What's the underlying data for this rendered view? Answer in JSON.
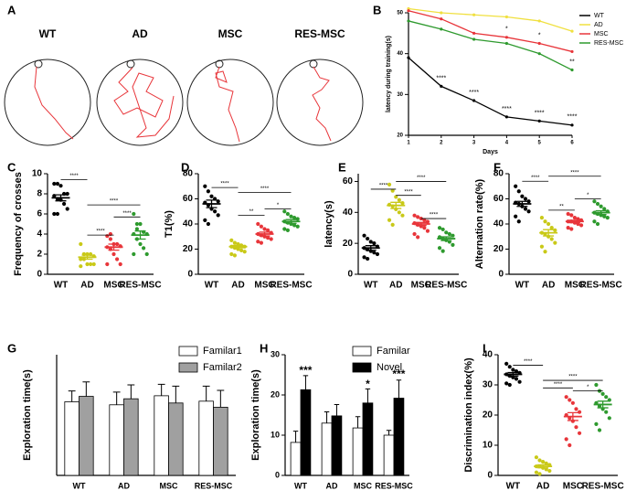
{
  "chart_data": [
    {
      "type": "trajectory",
      "label": "A",
      "categories": [
        "WT",
        "AD",
        "MSC",
        "RES-MSC"
      ]
    },
    {
      "type": "line",
      "label": "B",
      "xlabel": "Days",
      "ylabel": "latency during training(s)",
      "x": [
        1,
        2,
        3,
        4,
        5,
        6
      ],
      "xlim": [
        1,
        6
      ],
      "xticks": [
        1,
        2,
        3,
        4,
        5,
        6
      ],
      "ylim": [
        20,
        50
      ],
      "yticks": [
        20,
        30,
        40,
        50
      ],
      "series": [
        {
          "name": "WT",
          "color": "#000000",
          "values": [
            39,
            32,
            28.5,
            24.5,
            23.5,
            22.5
          ]
        },
        {
          "name": "AD",
          "color": "#f0e040",
          "values": [
            51,
            50,
            49.5,
            49,
            48,
            45.5
          ]
        },
        {
          "name": "MSC",
          "color": "#e8353a",
          "values": [
            50.5,
            48.5,
            45,
            44,
            42.5,
            40.5
          ]
        },
        {
          "name": "RES-MSC",
          "color": "#2e9a2e",
          "values": [
            48,
            46,
            43.5,
            42.5,
            40,
            36
          ]
        }
      ],
      "annotations": [
        {
          "x": 2,
          "y": 34,
          "text": "****"
        },
        {
          "x": 3,
          "y": 30.5,
          "text": "****"
        },
        {
          "x": 4,
          "y": 26.5,
          "text": "****"
        },
        {
          "x": 5,
          "y": 25.5,
          "text": "****"
        },
        {
          "x": 6,
          "y": 24.5,
          "text": "****"
        },
        {
          "x": 4,
          "y": 46,
          "text": "*"
        },
        {
          "x": 5,
          "y": 44.5,
          "text": "*"
        },
        {
          "x": 6,
          "y": 38,
          "text": "**"
        }
      ]
    },
    {
      "type": "dot",
      "label": "C",
      "ylabel": "Frequency of crosses",
      "categories": [
        "WT",
        "AD",
        "MSC",
        "RES-MSC"
      ],
      "colors": [
        "#000000",
        "#c9c918",
        "#e8353a",
        "#2e9a2e"
      ],
      "ylim": [
        0,
        10
      ],
      "yticks": [
        0,
        2,
        4,
        6,
        8,
        10
      ],
      "points": [
        [
          9,
          9,
          8.8,
          8,
          8,
          7.8,
          7.5,
          7.4,
          7,
          6.5,
          6,
          6
        ],
        [
          3,
          2,
          2,
          2,
          1.8,
          1.5,
          1.5,
          1,
          1,
          1,
          0.8,
          2
        ],
        [
          3.8,
          3.5,
          3,
          3,
          2.8,
          2.7,
          2.5,
          2,
          1.5,
          1,
          1,
          4
        ],
        [
          6,
          5,
          5,
          4.2,
          4,
          4,
          3.5,
          3,
          2.6,
          2,
          2,
          4.5
        ]
      ],
      "means": [
        7.6,
        1.7,
        2.7,
        3.9
      ],
      "errors": [
        0.3,
        0.2,
        0.3,
        0.4
      ],
      "brackets": [
        {
          "from": 0,
          "to": 1,
          "y": 9.4,
          "text": "****"
        },
        {
          "from": 1,
          "to": 3,
          "y": 6.9,
          "text": "****"
        },
        {
          "from": 2,
          "to": 3,
          "y": 5.7,
          "text": "****"
        },
        {
          "from": 1,
          "to": 2,
          "y": 3.9,
          "text": "****"
        }
      ]
    },
    {
      "type": "dot",
      "label": "D",
      "ylabel": "T1(%)",
      "categories": [
        "WT",
        "AD",
        "MSC",
        "RES-MSC"
      ],
      "colors": [
        "#000000",
        "#c9c918",
        "#e8353a",
        "#2e9a2e"
      ],
      "ylim": [
        0,
        80
      ],
      "yticks": [
        0,
        20,
        40,
        60,
        80
      ],
      "points": [
        [
          70,
          66,
          62,
          60,
          58,
          57,
          55,
          52,
          50,
          47,
          43,
          40
        ],
        [
          27,
          25,
          24,
          23,
          22,
          22,
          21,
          20,
          19,
          18,
          16,
          15
        ],
        [
          40,
          38,
          36,
          35,
          33,
          32,
          31,
          30,
          29,
          28,
          26,
          25
        ],
        [
          50,
          48,
          46,
          45,
          44,
          42,
          41,
          40,
          39,
          38,
          36,
          35
        ]
      ],
      "means": [
        56,
        22,
        32,
        42
      ],
      "errors": [
        3,
        1,
        1.5,
        1.5
      ],
      "brackets": [
        {
          "from": 0,
          "to": 1,
          "y": 69,
          "text": "****"
        },
        {
          "from": 1,
          "to": 3,
          "y": 65,
          "text": "****"
        },
        {
          "from": 2,
          "to": 3,
          "y": 52,
          "text": "*"
        },
        {
          "from": 1,
          "to": 2,
          "y": 47,
          "text": "**"
        }
      ]
    },
    {
      "type": "dot",
      "label": "E",
      "ylabel": "latency(s)",
      "categories": [
        "WT",
        "AD",
        "MSC",
        "RES-MSC"
      ],
      "colors": [
        "#000000",
        "#c9c918",
        "#e8353a",
        "#2e9a2e"
      ],
      "ylim": [
        0,
        65
      ],
      "yticks": [
        0,
        20,
        40,
        60
      ],
      "points": [
        [
          25,
          23,
          21,
          20,
          18,
          17,
          16,
          15,
          14,
          13,
          11,
          10
        ],
        [
          58,
          54,
          50,
          48,
          46,
          45,
          44,
          42,
          40,
          38,
          35,
          32
        ],
        [
          38,
          37,
          36,
          35,
          34,
          33,
          32,
          31,
          30,
          28,
          26,
          24
        ],
        [
          30,
          29,
          27,
          26,
          25,
          24,
          23,
          22,
          21,
          19,
          17,
          15
        ]
      ],
      "means": [
        17,
        44.5,
        32.5,
        23
      ],
      "errors": [
        1.5,
        2,
        1,
        1.2
      ],
      "brackets": [
        {
          "from": 0,
          "to": 1,
          "y": 55,
          "text": "****"
        },
        {
          "from": 1,
          "to": 3,
          "y": 60,
          "text": "****"
        },
        {
          "from": 1,
          "to": 2,
          "y": 51,
          "text": "****"
        },
        {
          "from": 2,
          "to": 3,
          "y": 36,
          "text": "****"
        }
      ]
    },
    {
      "type": "dot",
      "label": "F",
      "ylabel": "Alternation rate(%)",
      "categories": [
        "WT",
        "AD",
        "MSC",
        "RES-MSC"
      ],
      "colors": [
        "#000000",
        "#c9c918",
        "#e8353a",
        "#2e9a2e"
      ],
      "ylim": [
        0,
        80
      ],
      "yticks": [
        0,
        20,
        40,
        60,
        80
      ],
      "points": [
        [
          70,
          66,
          62,
          60,
          58,
          57,
          56,
          54,
          52,
          50,
          46,
          42
        ],
        [
          45,
          42,
          40,
          37,
          35,
          33,
          32,
          30,
          28,
          25,
          22,
          18
        ],
        [
          48,
          47,
          45,
          44,
          43,
          42,
          42,
          41,
          40,
          39,
          37,
          36
        ],
        [
          58,
          56,
          54,
          52,
          50,
          49,
          48,
          47,
          46,
          45,
          42,
          40
        ]
      ],
      "means": [
        56,
        33,
        42,
        49
      ],
      "errors": [
        2,
        2.5,
        1,
        1.5
      ],
      "brackets": [
        {
          "from": 0,
          "to": 1,
          "y": 74,
          "text": "****"
        },
        {
          "from": 1,
          "to": 3,
          "y": 78,
          "text": "****"
        },
        {
          "from": 1,
          "to": 2,
          "y": 51,
          "text": "**"
        },
        {
          "from": 2,
          "to": 3,
          "y": 60,
          "text": "*"
        }
      ]
    },
    {
      "type": "bar",
      "label": "G",
      "ylabel": "Exploration time(s)",
      "categories": [
        "WT",
        "AD",
        "MSC",
        "RES-MSC"
      ],
      "ylim": [
        0,
        20
      ],
      "series": [
        {
          "name": "Familar1",
          "color": "#ffffff",
          "values": [
            12.2,
            11.7,
            13.2,
            12.3
          ],
          "errors": [
            1.8,
            2.1,
            1.9,
            2.5
          ]
        },
        {
          "name": "Familar2",
          "color": "#a0a0a0",
          "values": [
            13.1,
            12.7,
            12.0,
            11.3
          ],
          "errors": [
            2.4,
            2.3,
            2.8,
            2.8
          ]
        }
      ]
    },
    {
      "type": "bar",
      "label": "H",
      "ylabel": "Exploration time(s)",
      "categories": [
        "WT",
        "AD",
        "MSC",
        "RES-MSC"
      ],
      "ylim": [
        0,
        30
      ],
      "yticks": [
        0,
        10,
        20,
        30
      ],
      "series": [
        {
          "name": "Familar",
          "color": "#ffffff",
          "values": [
            8.2,
            13,
            11.8,
            10
          ],
          "errors": [
            2.8,
            2.8,
            2.8,
            1.2
          ]
        },
        {
          "name": "Novel",
          "color": "#000000",
          "values": [
            21.3,
            14.8,
            18,
            19.2
          ],
          "errors": [
            3.5,
            2.8,
            3.5,
            4.5
          ]
        }
      ],
      "annotations": [
        {
          "index": 0,
          "y": 26,
          "text": "***"
        },
        {
          "index": 2,
          "y": 22.5,
          "text": "*"
        },
        {
          "index": 3,
          "y": 25,
          "text": "***"
        }
      ]
    },
    {
      "type": "dot",
      "label": "I",
      "ylabel": "Discrimination index(%)",
      "categories": [
        "WT",
        "AD",
        "MSC",
        "RES-MSC"
      ],
      "colors": [
        "#000000",
        "#c9c918",
        "#e8353a",
        "#2e9a2e"
      ],
      "ylim": [
        0,
        40
      ],
      "yticks": [
        0,
        10,
        20,
        30,
        40
      ],
      "points": [
        [
          37,
          36,
          35,
          34.5,
          34,
          33.5,
          33,
          32.5,
          32,
          31,
          30.5,
          30
        ],
        [
          6,
          5,
          4.5,
          4,
          3.5,
          3,
          3,
          2.5,
          2,
          1.5,
          1,
          0.5
        ],
        [
          26,
          25,
          24,
          22,
          21,
          20,
          19,
          18,
          16,
          14,
          12,
          10
        ],
        [
          30,
          28,
          27,
          26,
          25,
          24,
          23,
          22,
          21,
          19,
          17,
          15
        ]
      ],
      "means": [
        33.5,
        3,
        19.5,
        23.5
      ],
      "errors": [
        0.6,
        0.5,
        1.3,
        1.1
      ],
      "brackets": [
        {
          "from": 0,
          "to": 1,
          "y": 36.5,
          "text": "****"
        },
        {
          "from": 1,
          "to": 3,
          "y": 31.5,
          "text": "****"
        },
        {
          "from": 2,
          "to": 3,
          "y": 28,
          "text": "*"
        },
        {
          "from": 1,
          "to": 2,
          "y": 29,
          "text": "****"
        }
      ]
    }
  ]
}
